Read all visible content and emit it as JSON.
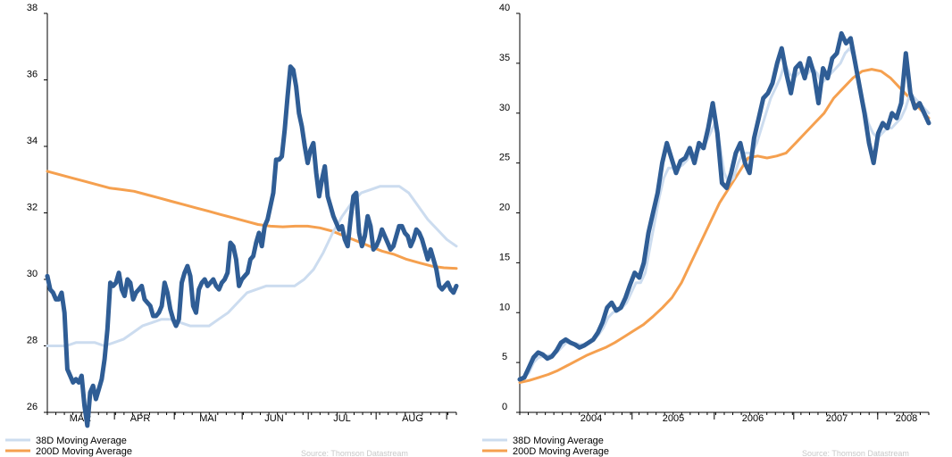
{
  "chart_data": [
    {
      "type": "line",
      "ylim": [
        26,
        38
      ],
      "y_ticks": [
        "26",
        "28",
        "30",
        "32",
        "34",
        "36",
        "38"
      ],
      "x_labels": [
        "MAR",
        "APR",
        "MAI",
        "JUN",
        "JUL",
        "AUG"
      ],
      "series": [
        {
          "name": "",
          "color": "#2f5d95",
          "values": [
            30.1,
            29.7,
            29.6,
            29.4,
            29.4,
            29.6,
            29.0,
            27.3,
            27.1,
            26.9,
            27.0,
            26.9,
            27.1,
            26.2,
            25.6,
            26.6,
            26.8,
            26.4,
            26.7,
            27.0,
            27.6,
            28.5,
            29.9,
            29.8,
            29.9,
            30.2,
            29.7,
            29.5,
            30.0,
            29.9,
            29.4,
            29.6,
            29.7,
            29.8,
            29.4,
            29.3,
            29.2,
            28.9,
            28.9,
            29.0,
            29.2,
            29.9,
            29.6,
            29.1,
            28.8,
            28.6,
            28.8,
            29.9,
            30.2,
            30.4,
            30.1,
            29.2,
            29.0,
            29.7,
            29.9,
            30.0,
            29.8,
            29.9,
            30.0,
            29.8,
            29.7,
            29.9,
            30.0,
            30.2,
            31.1,
            31.0,
            30.6,
            29.8,
            30.0,
            30.1,
            30.2,
            30.6,
            30.7,
            31.1,
            31.4,
            31.0,
            31.6,
            31.8,
            32.2,
            32.6,
            33.6,
            33.6,
            33.7,
            34.5,
            35.5,
            36.4,
            36.3,
            35.8,
            35.0,
            34.6,
            34.0,
            33.5,
            33.9,
            34.1,
            33.2,
            32.5,
            33.0,
            33.4,
            32.5,
            32.2,
            31.9,
            31.7,
            31.5,
            31.6,
            31.2,
            31.0,
            31.8,
            32.5,
            32.6,
            31.4,
            31.0,
            31.3,
            31.9,
            31.6,
            30.9,
            31.0,
            31.2,
            31.5,
            31.3,
            31.1,
            30.9,
            31.0,
            31.3,
            31.6,
            31.6,
            31.4,
            31.3,
            31.0,
            31.2,
            31.5,
            31.4,
            31.2,
            30.9,
            30.6,
            30.9,
            30.6,
            30.3,
            29.8,
            29.7,
            29.8,
            29.9,
            29.7,
            29.6,
            29.8
          ]
        },
        {
          "name": "38D Moving Average",
          "color": "#ccdcef",
          "values": [
            28.0,
            28.0,
            28.0,
            28.1,
            28.1,
            28.1,
            28.0,
            28.1,
            28.2,
            28.4,
            28.6,
            28.7,
            28.8,
            28.8,
            28.7,
            28.6,
            28.6,
            28.6,
            28.8,
            29.0,
            29.3,
            29.6,
            29.7,
            29.8,
            29.8,
            29.8,
            29.8,
            30.0,
            30.3,
            30.8,
            31.4,
            31.9,
            32.3,
            32.6,
            32.7,
            32.8,
            32.8,
            32.8,
            32.6,
            32.2,
            31.8,
            31.5,
            31.2,
            31.0
          ]
        },
        {
          "name": "200D Moving Average",
          "color": "#f5a04f",
          "values": [
            33.25,
            33.15,
            33.05,
            32.95,
            32.85,
            32.75,
            32.7,
            32.65,
            32.55,
            32.45,
            32.35,
            32.25,
            32.15,
            32.05,
            31.95,
            31.85,
            31.75,
            31.65,
            31.6,
            31.58,
            31.6,
            31.6,
            31.55,
            31.45,
            31.3,
            31.15,
            31.0,
            30.85,
            30.75,
            30.6,
            30.5,
            30.4,
            30.35,
            30.33
          ]
        }
      ]
    },
    {
      "type": "line",
      "ylim": [
        0,
        40
      ],
      "y_ticks": [
        "0",
        "5",
        "10",
        "15",
        "20",
        "25",
        "30",
        "35",
        "40"
      ],
      "x_labels": [
        "2004",
        "2005",
        "2006",
        "2007",
        "2008"
      ],
      "series": [
        {
          "name": "",
          "color": "#2f5d95",
          "values": [
            3.3,
            3.5,
            4.5,
            5.5,
            6.0,
            5.8,
            5.4,
            5.6,
            6.2,
            7.0,
            7.3,
            7.0,
            6.8,
            6.5,
            6.7,
            7.0,
            7.3,
            8.0,
            9.0,
            10.5,
            11.0,
            10.2,
            10.5,
            11.5,
            12.8,
            14.0,
            13.5,
            15.0,
            18.0,
            20.0,
            22.0,
            25.0,
            27.0,
            25.5,
            24.0,
            25.2,
            25.5,
            26.5,
            25.0,
            27.0,
            26.5,
            28.5,
            31.0,
            28.0,
            23.0,
            22.5,
            24.0,
            26.0,
            27.0,
            25.0,
            24.0,
            27.5,
            29.5,
            31.5,
            32.0,
            33.0,
            35.0,
            36.5,
            34.0,
            32.0,
            34.5,
            35.0,
            33.5,
            35.5,
            34.0,
            31.0,
            34.5,
            33.5,
            35.5,
            36.0,
            38.0,
            37.0,
            37.5,
            35.0,
            32.5,
            30.0,
            27.0,
            25.0,
            28.0,
            29.0,
            28.5,
            30.0,
            29.5,
            31.0,
            36.0,
            32.0,
            30.5,
            31.0,
            30.0,
            29.0
          ]
        },
        {
          "name": "38D Moving Average",
          "color": "#ccdcef",
          "values": [
            3.3,
            3.5,
            4.0,
            5.0,
            5.5,
            5.6,
            5.7,
            5.8,
            6.0,
            6.5,
            7.0,
            7.0,
            6.9,
            6.8,
            6.8,
            7.0,
            7.3,
            7.8,
            8.5,
            9.5,
            10.0,
            10.2,
            10.5,
            11.0,
            12.0,
            13.0,
            13.0,
            14.0,
            16.5,
            19.0,
            21.5,
            23.5,
            24.5,
            24.5,
            24.5,
            24.8,
            25.3,
            26.0,
            26.0,
            26.5,
            27.0,
            28.0,
            29.0,
            27.0,
            24.0,
            23.0,
            23.5,
            25.0,
            26.0,
            26.0,
            26.0,
            27.0,
            28.5,
            30.0,
            31.5,
            32.5,
            33.5,
            35.0,
            34.0,
            33.5,
            34.0,
            34.5,
            34.0,
            34.5,
            34.0,
            33.0,
            33.5,
            34.0,
            34.5,
            35.0,
            36.0,
            36.5,
            35.5,
            33.5,
            31.0,
            29.0,
            28.0,
            27.5,
            28.0,
            28.5,
            28.5,
            29.0,
            29.5,
            30.5,
            32.0,
            31.5,
            31.0,
            30.5,
            30.0
          ]
        },
        {
          "name": "200D Moving Average",
          "color": "#f5a04f",
          "values": [
            3.0,
            3.2,
            3.5,
            3.8,
            4.2,
            4.7,
            5.2,
            5.7,
            6.1,
            6.5,
            7.0,
            7.6,
            8.2,
            8.8,
            9.6,
            10.5,
            11.5,
            13.0,
            15.0,
            17.0,
            19.0,
            21.0,
            22.5,
            24.0,
            25.5,
            25.7,
            25.5,
            25.7,
            26.0,
            27.0,
            28.0,
            29.0,
            30.0,
            31.5,
            32.5,
            33.5,
            34.2,
            34.4,
            34.2,
            33.5,
            32.5,
            31.5,
            30.5,
            29.5
          ]
        }
      ]
    }
  ],
  "legend": {
    "item_1": "38D Moving Average",
    "item_2": "200D Moving Average"
  },
  "source_text": "Source: Thomson Datastream"
}
